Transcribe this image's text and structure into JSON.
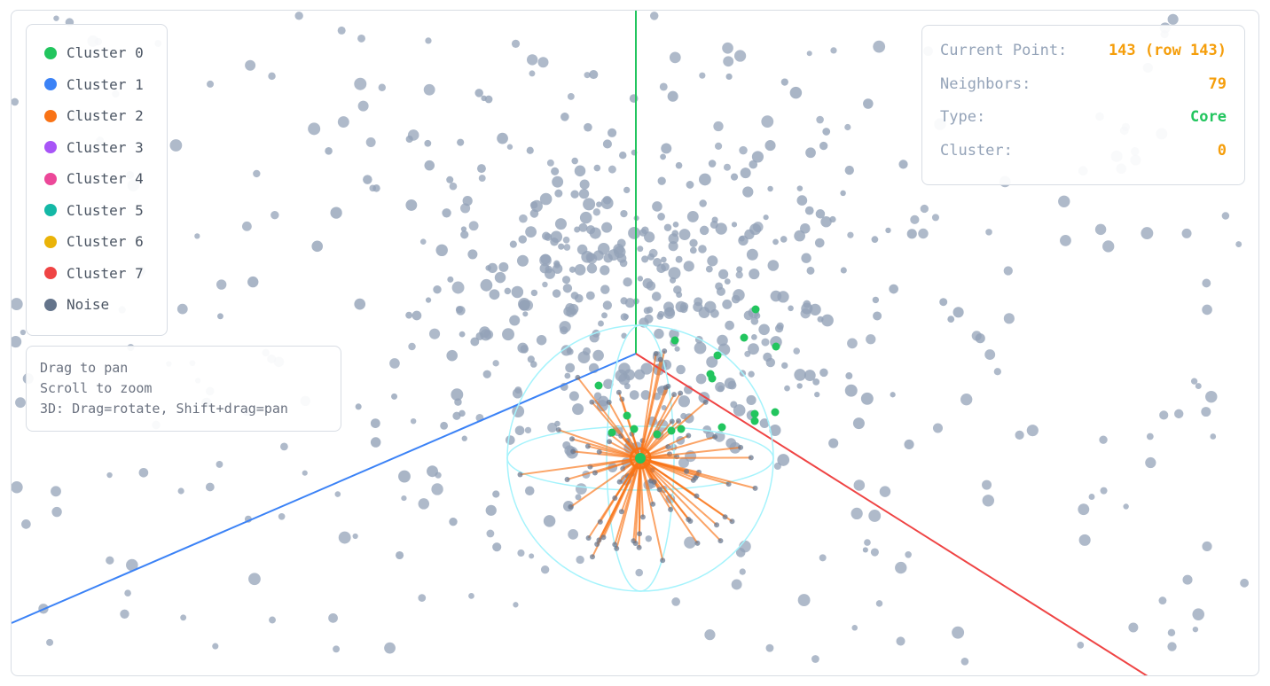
{
  "legend": {
    "items": [
      {
        "label": "Cluster 0",
        "color": "#22c55e"
      },
      {
        "label": "Cluster 1",
        "color": "#3b82f6"
      },
      {
        "label": "Cluster 2",
        "color": "#f97316"
      },
      {
        "label": "Cluster 3",
        "color": "#a855f7"
      },
      {
        "label": "Cluster 4",
        "color": "#ec4899"
      },
      {
        "label": "Cluster 5",
        "color": "#14b8a6"
      },
      {
        "label": "Cluster 6",
        "color": "#eab308"
      },
      {
        "label": "Cluster 7",
        "color": "#ef4444"
      },
      {
        "label": "Noise",
        "color": "#64748b"
      }
    ]
  },
  "help": {
    "lines": [
      "Drag to pan",
      "Scroll to zoom",
      "3D: Drag=rotate, Shift+drag=pan"
    ]
  },
  "info": {
    "rows": [
      {
        "label": "Current Point:",
        "value": "143 (row 143)",
        "color": "#f59e0b"
      },
      {
        "label": "Neighbors:",
        "value": "79",
        "color": "#f59e0b"
      },
      {
        "label": "Type:",
        "value": "Core",
        "color": "#22c55e"
      },
      {
        "label": "Cluster:",
        "value": "0",
        "color": "#f59e0b"
      }
    ]
  }
}
